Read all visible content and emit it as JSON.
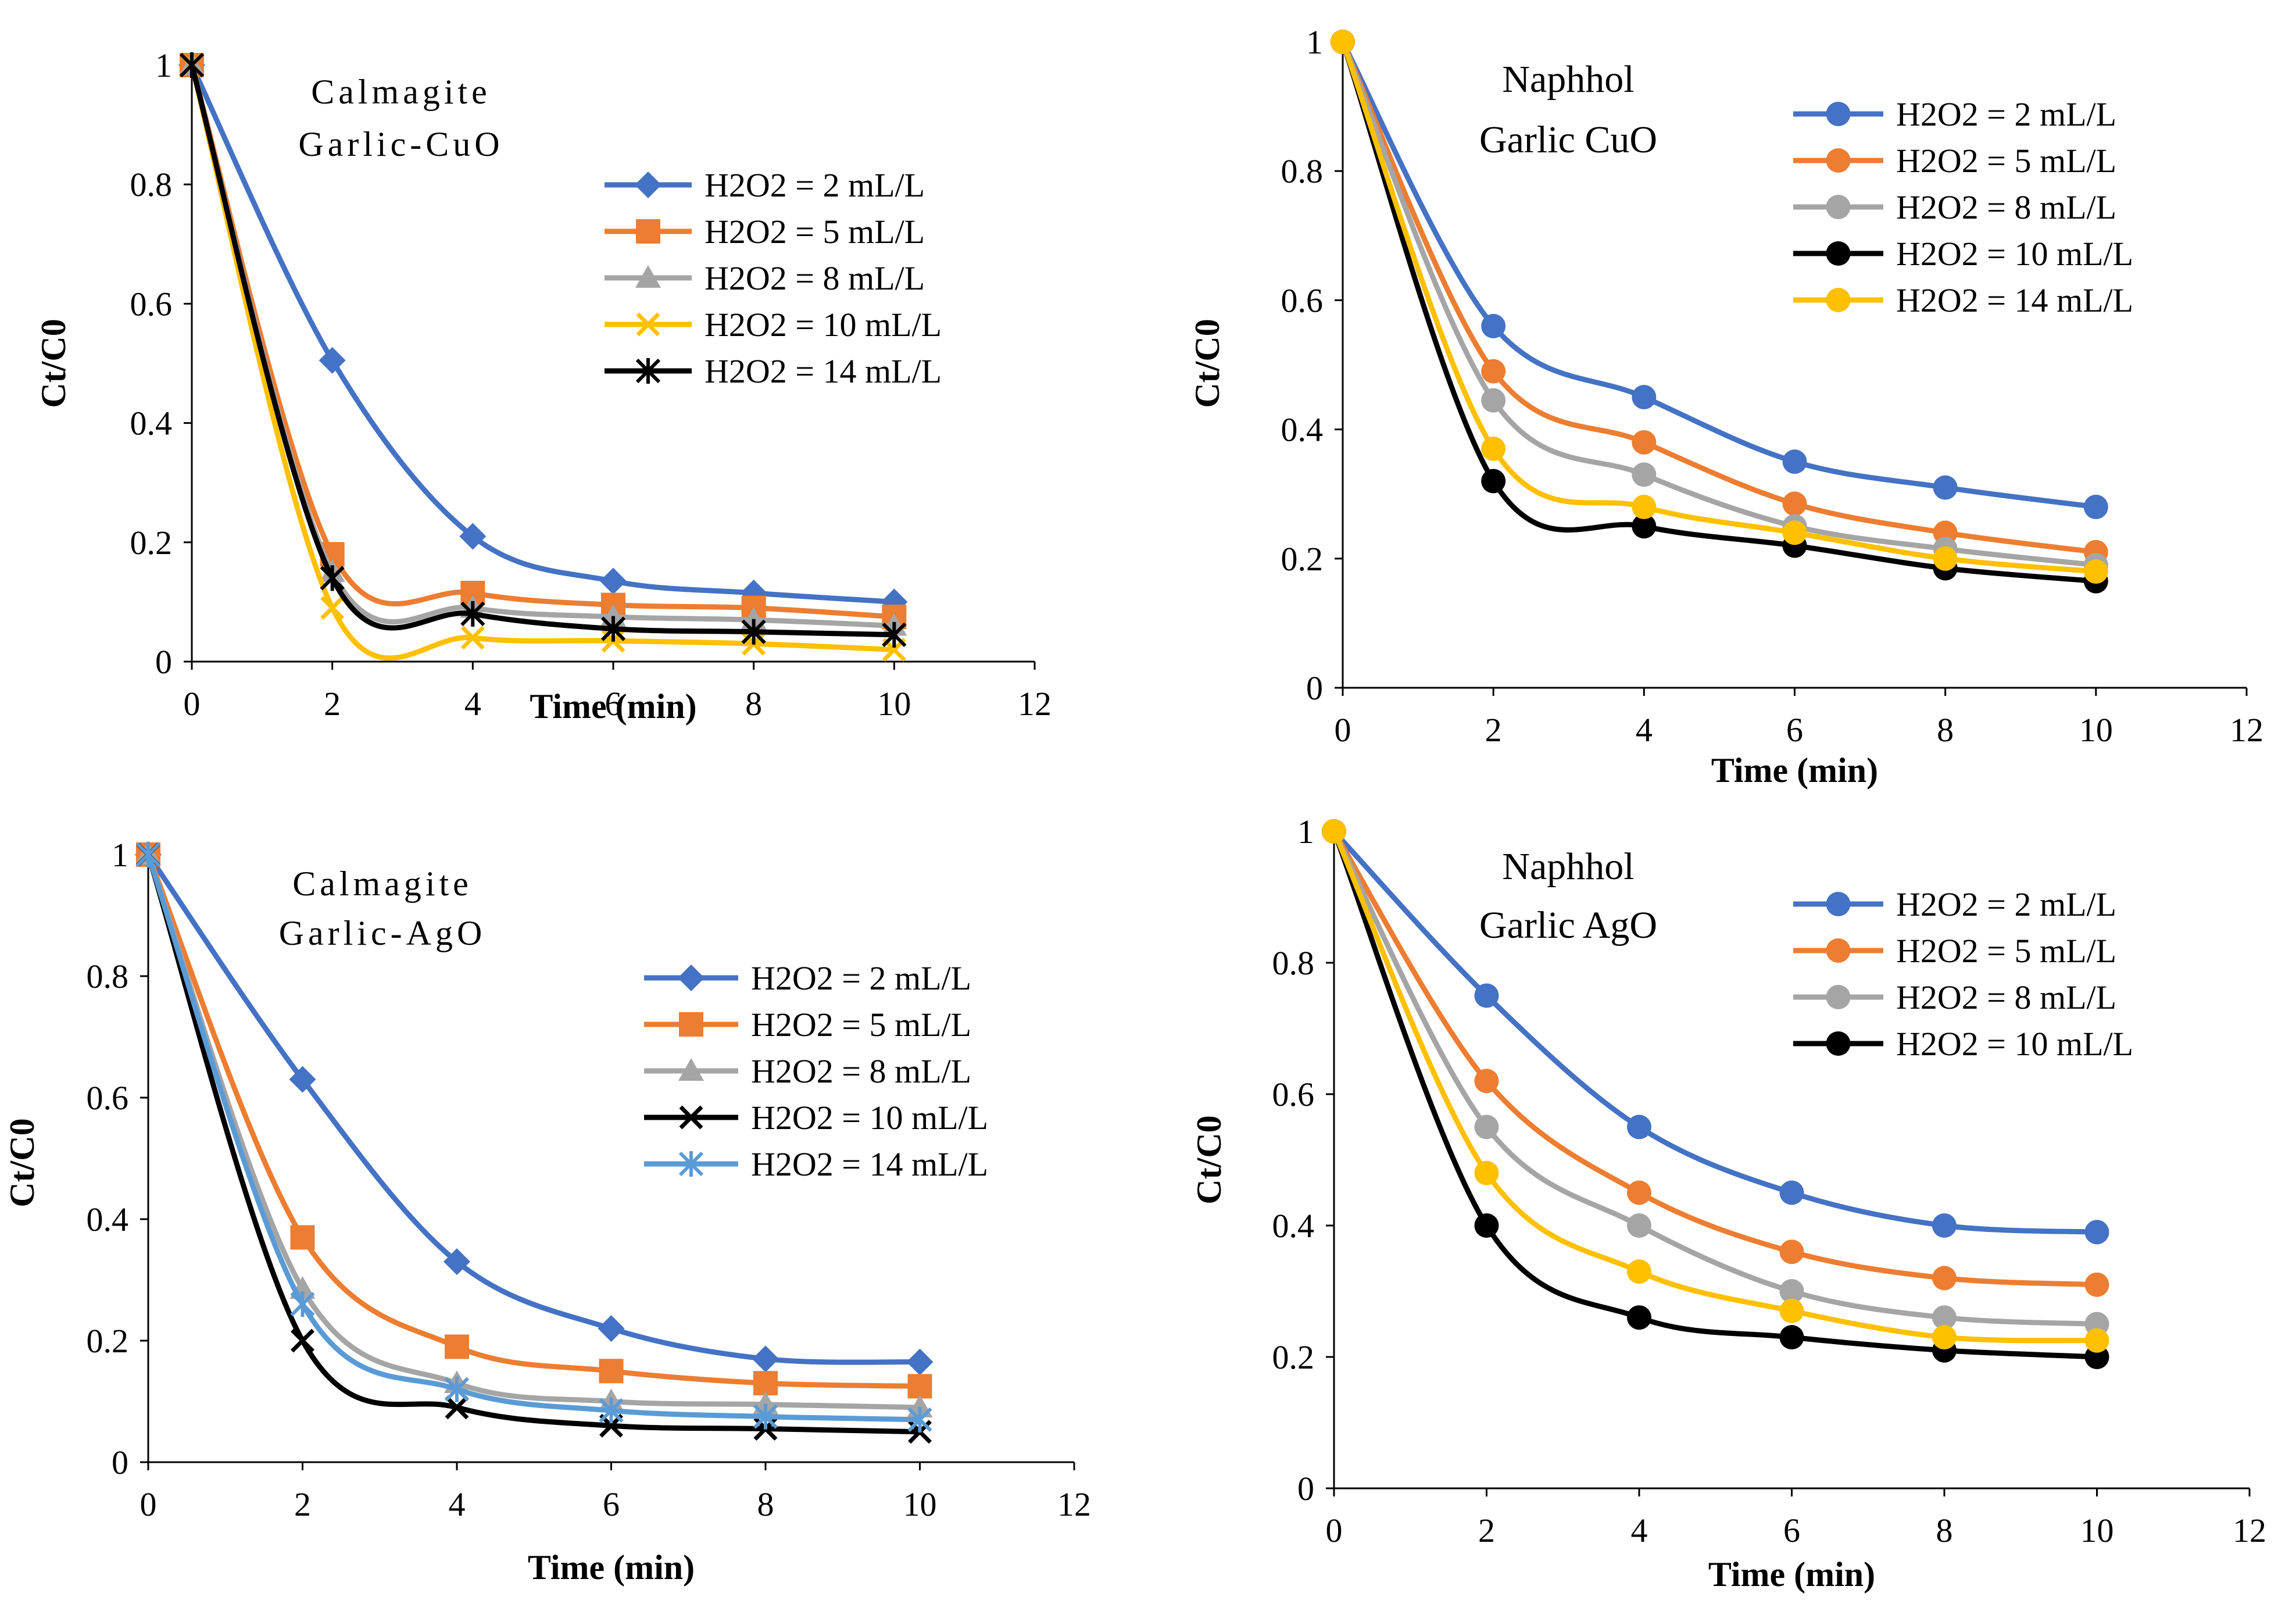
{
  "chart_data": [
    {
      "type": "line",
      "annotation_lines": [
        "Calmagite",
        "Garlic-CuO"
      ],
      "xlabel": "Time (min)",
      "ylabel": "Ct/C0",
      "xlim": [
        0,
        12
      ],
      "ylim": [
        0,
        1
      ],
      "xticks": [
        "0",
        "2",
        "4",
        "6",
        "8",
        "10",
        "12"
      ],
      "yticks": [
        "0",
        "0.2",
        "0.4",
        "0.6",
        "0.8",
        "1"
      ],
      "x": [
        0,
        2,
        4,
        6,
        8,
        10
      ],
      "series": [
        {
          "name": "H2O2 = 2 mL/L",
          "color": "#4472C4",
          "marker": "diamond",
          "values": [
            1,
            0.505,
            0.21,
            0.135,
            0.115,
            0.1
          ]
        },
        {
          "name": "H2O2 = 5 mL/L",
          "color": "#ED7D31",
          "marker": "square",
          "values": [
            1,
            0.18,
            0.115,
            0.095,
            0.09,
            0.075
          ]
        },
        {
          "name": "H2O2 = 8 mL/L",
          "color": "#A5A5A5",
          "marker": "triangle",
          "values": [
            1,
            0.15,
            0.09,
            0.075,
            0.07,
            0.06
          ]
        },
        {
          "name": "H2O2 = 10 mL/L",
          "color": "#FFC000",
          "marker": "x",
          "values": [
            1,
            0.09,
            0.04,
            0.035,
            0.03,
            0.02
          ]
        },
        {
          "name": "H2O2 = 14 mL/L",
          "color": "#000000",
          "marker": "star",
          "values": [
            1,
            0.14,
            0.08,
            0.055,
            0.05,
            0.045
          ]
        }
      ]
    },
    {
      "type": "line",
      "annotation_lines": [
        "Naphhol",
        "Garlic CuO"
      ],
      "xlabel": "Time (min)",
      "ylabel": "Ct/C0",
      "xlim": [
        0,
        12
      ],
      "ylim": [
        0,
        1
      ],
      "xticks": [
        "0",
        "2",
        "4",
        "6",
        "8",
        "10",
        "12"
      ],
      "yticks": [
        "0",
        "0.2",
        "0.4",
        "0.6",
        "0.8",
        "1"
      ],
      "x": [
        0,
        2,
        4,
        6,
        8,
        10
      ],
      "series": [
        {
          "name": "H2O2 = 2 mL/L",
          "color": "#4472C4",
          "marker": "circle",
          "values": [
            1,
            0.56,
            0.45,
            0.35,
            0.31,
            0.28
          ]
        },
        {
          "name": "H2O2 = 5 mL/L",
          "color": "#ED7D31",
          "marker": "circle",
          "values": [
            1,
            0.49,
            0.38,
            0.285,
            0.24,
            0.21
          ]
        },
        {
          "name": "H2O2 = 8 mL/L",
          "color": "#A5A5A5",
          "marker": "circle",
          "values": [
            1,
            0.445,
            0.33,
            0.25,
            0.215,
            0.19
          ]
        },
        {
          "name": "H2O2 = 10 mL/L",
          "color": "#000000",
          "marker": "circle",
          "values": [
            1,
            0.32,
            0.25,
            0.22,
            0.185,
            0.165
          ]
        },
        {
          "name": "H2O2 = 14 mL/L",
          "color": "#FFC000",
          "marker": "circle",
          "values": [
            1,
            0.37,
            0.28,
            0.24,
            0.2,
            0.18
          ]
        }
      ]
    },
    {
      "type": "line",
      "annotation_lines": [
        "Calmagite",
        "Garlic-AgO"
      ],
      "xlabel": "Time (min)",
      "ylabel": "Ct/C0",
      "xlim": [
        0,
        12
      ],
      "ylim": [
        0,
        1
      ],
      "xticks": [
        "0",
        "2",
        "4",
        "6",
        "8",
        "10",
        "12"
      ],
      "yticks": [
        "0",
        "0.2",
        "0.4",
        "0.6",
        "0.8",
        "1"
      ],
      "x": [
        0,
        2,
        4,
        6,
        8,
        10
      ],
      "series": [
        {
          "name": "H2O2 = 2 mL/L",
          "color": "#4472C4",
          "marker": "diamond",
          "values": [
            1,
            0.63,
            0.33,
            0.22,
            0.17,
            0.165
          ]
        },
        {
          "name": "H2O2 = 5 mL/L",
          "color": "#ED7D31",
          "marker": "square",
          "values": [
            1,
            0.37,
            0.19,
            0.15,
            0.13,
            0.125
          ]
        },
        {
          "name": "H2O2 = 8 mL/L",
          "color": "#A5A5A5",
          "marker": "triangle",
          "values": [
            1,
            0.285,
            0.13,
            0.1,
            0.095,
            0.09
          ]
        },
        {
          "name": "H2O2 = 10 mL/L",
          "color": "#000000",
          "marker": "x",
          "values": [
            1,
            0.2,
            0.09,
            0.06,
            0.055,
            0.05
          ]
        },
        {
          "name": "H2O2 = 14 mL/L",
          "color": "#5B9BD5",
          "marker": "star",
          "values": [
            1,
            0.26,
            0.12,
            0.085,
            0.075,
            0.07
          ]
        }
      ]
    },
    {
      "type": "line",
      "annotation_lines": [
        "Naphhol",
        "Garlic AgO"
      ],
      "xlabel": "Time (min)",
      "ylabel": "Ct/C0",
      "xlim": [
        0,
        12
      ],
      "ylim": [
        0,
        1
      ],
      "xticks": [
        "0",
        "2",
        "4",
        "6",
        "8",
        "10",
        "12"
      ],
      "yticks": [
        "0",
        "0.2",
        "0.4",
        "0.6",
        "0.8",
        "1"
      ],
      "x": [
        0,
        2,
        4,
        6,
        8,
        10
      ],
      "series": [
        {
          "name": "H2O2 = 2 mL/L",
          "color": "#4472C4",
          "marker": "circle",
          "values": [
            1,
            0.75,
            0.55,
            0.45,
            0.4,
            0.39
          ]
        },
        {
          "name": "H2O2 = 5 mL/L",
          "color": "#ED7D31",
          "marker": "circle",
          "values": [
            1,
            0.62,
            0.45,
            0.36,
            0.32,
            0.31
          ]
        },
        {
          "name": "H2O2 = 8 mL/L",
          "color": "#A5A5A5",
          "marker": "circle",
          "values": [
            1,
            0.55,
            0.4,
            0.3,
            0.26,
            0.25
          ]
        },
        {
          "name": "H2O2 = 10 mL/L",
          "color": "#000000",
          "marker": "circle",
          "values": [
            1,
            0.4,
            0.26,
            0.23,
            0.21,
            0.2
          ]
        },
        {
          "name": "",
          "color": "#FFC000",
          "marker": "circle",
          "values": [
            1,
            0.48,
            0.33,
            0.27,
            0.23,
            0.225
          ]
        }
      ]
    }
  ]
}
